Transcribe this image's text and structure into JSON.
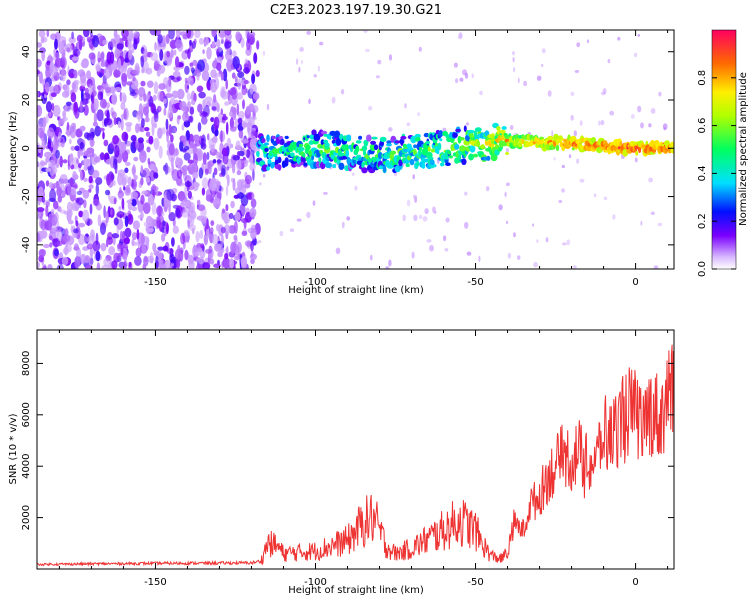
{
  "title": "C2E3.2023.197.19.30.G21",
  "chart_data": [
    {
      "type": "heatmap",
      "xlabel": "Height of straight line (km)",
      "ylabel": "Frequency (Hz)",
      "xlim": [
        -187,
        12
      ],
      "ylim": [
        -50,
        49
      ],
      "xticks": [
        -150,
        -100,
        -50,
        0
      ],
      "yticks": [
        -40,
        -20,
        0,
        20,
        40
      ],
      "colorbar": {
        "label": "Normalized spectral amplitude",
        "range": [
          0,
          1
        ],
        "ticks": [
          0.0,
          0.2,
          0.4,
          0.6,
          0.8
        ]
      },
      "ridge": {
        "x": [
          -187,
          -120,
          -118,
          -100,
          -80,
          -60,
          -50,
          -40,
          -20,
          0,
          12
        ],
        "frequency": [
          0,
          0,
          -2,
          0,
          -3,
          0,
          2,
          3,
          2,
          0,
          0
        ],
        "amplitude": [
          0.22,
          0.22,
          0.4,
          0.45,
          0.45,
          0.5,
          0.55,
          0.7,
          0.85,
          0.9,
          0.85
        ]
      }
    },
    {
      "type": "line",
      "xlabel": "Height of straight line (km)",
      "ylabel": "SNR (10 * v/v)",
      "xlim": [
        -187,
        12
      ],
      "ylim": [
        0,
        9300
      ],
      "xticks": [
        -150,
        -100,
        -50,
        0
      ],
      "yticks": [
        2000,
        4000,
        6000,
        8000
      ],
      "color": "#ee3333",
      "series": [
        {
          "x": [
            -187,
            -170,
            -150,
            -130,
            -120,
            -117,
            -115,
            -112,
            -110,
            -100,
            -90,
            -85,
            -82,
            -80,
            -78,
            -75,
            -70,
            -60,
            -55,
            -50,
            -48,
            -45,
            -42,
            -40,
            -38,
            -35,
            -33,
            -30,
            -28,
            -25,
            -22,
            -20,
            -18,
            -15,
            -12,
            -10,
            -8,
            -5,
            -3,
            0,
            2,
            5,
            8,
            10,
            12
          ],
          "y": [
            180,
            200,
            220,
            230,
            240,
            300,
            1000,
            900,
            600,
            700,
            1100,
            1800,
            2000,
            1500,
            900,
            600,
            800,
            1500,
            1900,
            1500,
            1000,
            500,
            400,
            600,
            1800,
            1500,
            2500,
            2800,
            3500,
            4000,
            4500,
            4200,
            4600,
            4000,
            4300,
            5500,
            5000,
            5800,
            6200,
            6000,
            5600,
            6200,
            5800,
            7000,
            6600
          ]
        }
      ]
    }
  ]
}
